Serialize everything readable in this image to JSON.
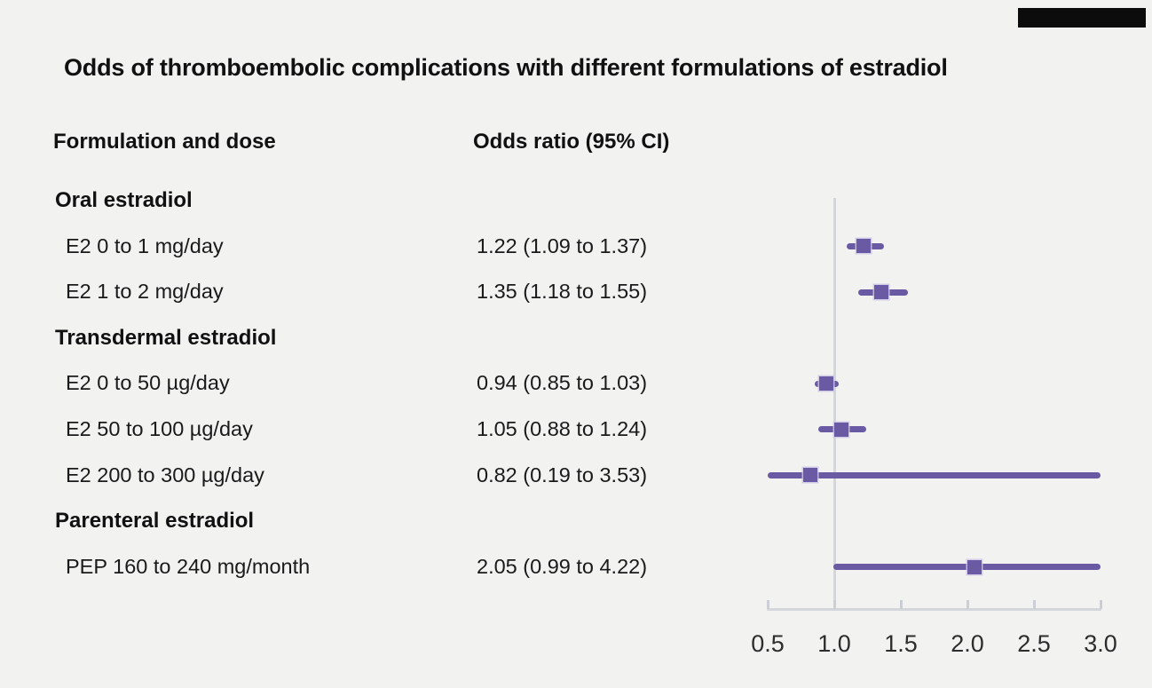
{
  "window": {
    "background": "#f2f2f1",
    "masthead_color": "#0c0c0c"
  },
  "header": {
    "title": "Odds of thromboembolic complications with different formulations of estradiol",
    "col_formulation": "Formulation and dose",
    "col_odds_ratio": "Odds ratio (95% CI)"
  },
  "chart_data": {
    "type": "forest",
    "title": "Odds of thromboembolic complications with different formulations of estradiol",
    "xlabel": "Odds ratio (95% CI)",
    "xlim": [
      0.5,
      3.0
    ],
    "x_ticks": [
      "0.5",
      "1.0",
      "1.5",
      "2.0",
      "2.5",
      "3.0"
    ],
    "x_tick_values": [
      0.5,
      1.0,
      1.5,
      2.0,
      2.5,
      3.0
    ],
    "reference_line": 1.0,
    "grid": false,
    "legend": "none",
    "marker_color": "#6a5aa3",
    "axis_color": "#d3d6db",
    "groups": [
      {
        "label": "Oral estradiol",
        "rows": [
          {
            "label": "E2 0 to 1 mg/day",
            "or_text": "1.22 (1.09 to 1.37)",
            "or": 1.22,
            "ci_low": 1.09,
            "ci_high": 1.37
          },
          {
            "label": "E2 1 to 2 mg/day",
            "or_text": "1.35 (1.18 to 1.55)",
            "or": 1.35,
            "ci_low": 1.18,
            "ci_high": 1.55
          }
        ]
      },
      {
        "label": "Transdermal estradiol",
        "rows": [
          {
            "label": "E2 0 to 50 µg/day",
            "or_text": "0.94 (0.85 to 1.03)",
            "or": 0.94,
            "ci_low": 0.85,
            "ci_high": 1.03
          },
          {
            "label": "E2 50 to 100 µg/day",
            "or_text": "1.05 (0.88 to 1.24)",
            "or": 1.05,
            "ci_low": 0.88,
            "ci_high": 1.24
          },
          {
            "label": "E2 200 to 300 µg/day",
            "or_text": "0.82 (0.19 to 3.53)",
            "or": 0.82,
            "ci_low": 0.19,
            "ci_high": 3.53
          }
        ]
      },
      {
        "label": "Parenteral estradiol",
        "rows": [
          {
            "label": "PEP 160 to 240 mg/month",
            "or_text": "2.05 (0.99 to 4.22)",
            "or": 2.05,
            "ci_low": 0.99,
            "ci_high": 4.22
          }
        ]
      }
    ]
  }
}
